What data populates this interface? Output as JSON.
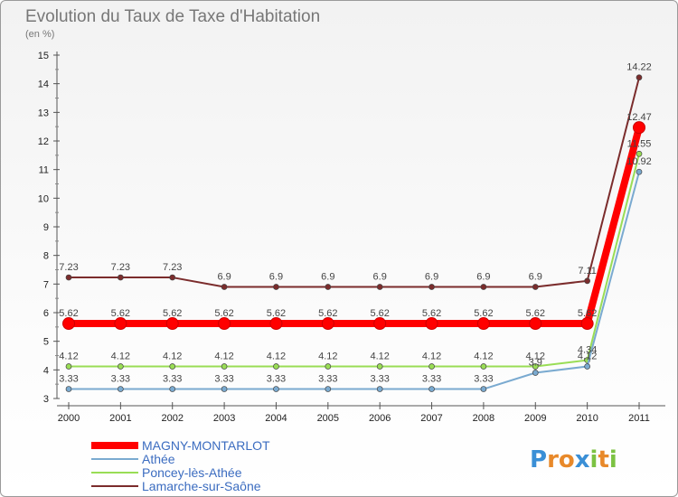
{
  "chart_data": {
    "type": "line",
    "title": "Evolution du Taux de Taxe d'Habitation",
    "ylabel": "(en %)",
    "xlabel": "",
    "categories": [
      "2000",
      "2001",
      "2002",
      "2003",
      "2004",
      "2005",
      "2006",
      "2007",
      "2008",
      "2009",
      "2010",
      "2011"
    ],
    "ylim": [
      3,
      15
    ],
    "yticks": [
      "3",
      "4",
      "5",
      "6",
      "7",
      "8",
      "9",
      "10",
      "11",
      "12",
      "13",
      "14",
      "15"
    ],
    "series": [
      {
        "name": "Lamarche-sur-Saône",
        "color": "#7b2c2c",
        "values": [
          7.23,
          7.23,
          7.23,
          6.9,
          6.9,
          6.9,
          6.9,
          6.9,
          6.9,
          6.9,
          7.11,
          14.22
        ],
        "labels": [
          "7.23",
          "7.23",
          "7.23",
          "6.9",
          "6.9",
          "6.9",
          "6.9",
          "6.9",
          "6.9",
          "6.9",
          "7.11",
          "14.22"
        ]
      },
      {
        "name": "Poncey-lès-Athée",
        "color": "#99dd55",
        "values": [
          4.12,
          4.12,
          4.12,
          4.12,
          4.12,
          4.12,
          4.12,
          4.12,
          4.12,
          4.12,
          4.34,
          11.55
        ],
        "labels": [
          "4.12",
          "4.12",
          "4.12",
          "4.12",
          "4.12",
          "4.12",
          "4.12",
          "4.12",
          "4.12",
          "4.12",
          "4.34",
          "11.55"
        ]
      },
      {
        "name": "Athée",
        "color": "#7aaad0",
        "values": [
          3.33,
          3.33,
          3.33,
          3.33,
          3.33,
          3.33,
          3.33,
          3.33,
          3.33,
          3.9,
          4.12,
          10.92
        ],
        "labels": [
          "3.33",
          "3.33",
          "3.33",
          "3.33",
          "3.33",
          "3.33",
          "3.33",
          "3.33",
          "3.33",
          "3.9",
          "4.12",
          "10.92"
        ]
      },
      {
        "name": "MAGNY-MONTARLOT",
        "color": "#ff0000",
        "values": [
          5.62,
          5.62,
          5.62,
          5.62,
          5.62,
          5.62,
          5.62,
          5.62,
          5.62,
          5.62,
          5.62,
          12.47
        ],
        "labels": [
          "5.62",
          "5.62",
          "5.62",
          "5.62",
          "5.62",
          "5.62",
          "5.62",
          "5.62",
          "5.62",
          "5.62",
          "5.62",
          "12.47"
        ]
      }
    ],
    "legend_order": [
      "MAGNY-MONTARLOT",
      "Athée",
      "Poncey-lès-Athée",
      "Lamarche-sur-Saône"
    ],
    "legend_position": "bottom-left"
  },
  "logo": {
    "text": "Proxiti",
    "letters": [
      "P",
      "r",
      "o",
      "x",
      "i",
      "t",
      "i"
    ],
    "colors": [
      "#3a8fd6",
      "#e8892a",
      "#e8892a",
      "#3a8fd6",
      "#7cc242",
      "#e8892a",
      "#7cc242"
    ]
  }
}
